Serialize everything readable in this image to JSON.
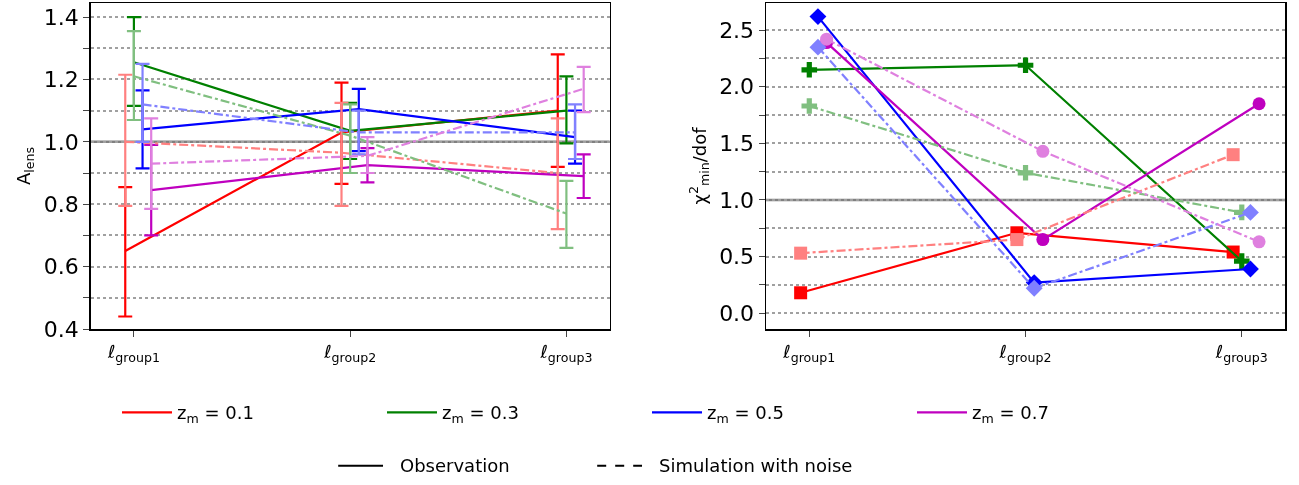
{
  "chart_data": [
    {
      "type": "line",
      "ylabel": "A$_{lens}$",
      "categories": [
        "ℓ$_{group1}$",
        "ℓ$_{group2}$",
        "ℓ$_{group3}$"
      ],
      "ylim": [
        0.4,
        1.445
      ],
      "yticks": [
        {
          "value": 0.4,
          "label": "0.4"
        },
        {
          "value": 0.5,
          "label": null
        },
        {
          "value": 0.6,
          "label": "0.6"
        },
        {
          "value": 0.7,
          "label": null
        },
        {
          "value": 0.8,
          "label": "0.8"
        },
        {
          "value": 0.9,
          "label": null
        },
        {
          "value": 1.0,
          "label": "1.0"
        },
        {
          "value": 1.1,
          "label": null
        },
        {
          "value": 1.2,
          "label": "1.2"
        },
        {
          "value": 1.3,
          "label": null
        },
        {
          "value": 1.4,
          "label": "1.4"
        }
      ],
      "grid": "y",
      "legend": "bottom",
      "marker": "none",
      "ref_lines": [
        {
          "axis": "y",
          "value": 1,
          "color": "#808080"
        }
      ],
      "annotations": [
        "Observation",
        "Simulation with noise"
      ],
      "series": [
        {
          "name": "z$_{m}$ = 0.1",
          "color": "#ff0000",
          "line_style": "solid",
          "values": [
            0.65,
            1.03,
            1.1
          ],
          "errors": [
            [
              0.44,
              0.855
            ],
            [
              0.865,
              1.19
            ],
            [
              0.92,
              1.28
            ]
          ]
        },
        {
          "name": "z$_{m}$ = 0.3",
          "color": "#008000",
          "line_style": "solid",
          "values": [
            1.255,
            1.035,
            1.1
          ],
          "errors": [
            [
              1.115,
              1.4
            ],
            [
              0.945,
              1.125
            ],
            [
              0.995,
              1.21
            ]
          ]
        },
        {
          "name": "z$_{m}$ = 0.5",
          "color": "#0000ff",
          "line_style": "solid",
          "values": [
            1.04,
            1.105,
            1.015
          ],
          "errors": [
            [
              0.915,
              1.165
            ],
            [
              0.97,
              1.17
            ],
            [
              0.93,
              1.1
            ]
          ]
        },
        {
          "name": "z$_{m}$ = 0.7",
          "color": "#bf00bf",
          "line_style": "solid",
          "values": [
            0.845,
            0.925,
            0.89
          ],
          "errors": [
            [
              0.7,
              0.99
            ],
            [
              0.87,
              0.98
            ],
            [
              0.82,
              0.96
            ]
          ]
        },
        {
          "color": "#ff8080",
          "line_style": "dashed",
          "values": [
            1.0,
            0.965,
            0.9
          ],
          "errors": [
            [
              0.795,
              1.215
            ],
            [
              0.795,
              1.125
            ],
            [
              0.72,
              1.075
            ]
          ]
        },
        {
          "color": "#80bf80",
          "line_style": "dashed",
          "values": [
            1.21,
            1.02,
            0.77
          ],
          "errors": [
            [
              1.07,
              1.355
            ],
            [
              0.9,
              1.12
            ],
            [
              0.66,
              0.875
            ]
          ]
        },
        {
          "color": "#8080ff",
          "line_style": "dashed",
          "values": [
            1.12,
            1.03,
            1.03
          ],
          "errors": [
            [
              1.0,
              1.25
            ],
            [
              0.96,
              1.1
            ],
            [
              0.945,
              1.12
            ]
          ]
        },
        {
          "color": "#df80df",
          "line_style": "dashed",
          "values": [
            0.93,
            0.955,
            1.17
          ],
          "errors": [
            [
              0.785,
              1.075
            ],
            [
              0.9,
              1.015
            ],
            [
              1.095,
              1.24
            ]
          ]
        }
      ]
    },
    {
      "type": "line",
      "ylabel": "χ$^{2}$$_{min}$/dof",
      "categories": [
        "ℓ$_{group1}$",
        "ℓ$_{group2}$",
        "ℓ$_{group3}$"
      ],
      "ylim": [
        -0.14,
        2.74
      ],
      "yticks": [
        {
          "value": 0.0,
          "label": "0.0"
        },
        {
          "value": 0.25,
          "label": null
        },
        {
          "value": 0.5,
          "label": "0.5"
        },
        {
          "value": 0.75,
          "label": null
        },
        {
          "value": 1.0,
          "label": "1.0"
        },
        {
          "value": 1.25,
          "label": null
        },
        {
          "value": 1.5,
          "label": "1.5"
        },
        {
          "value": 1.75,
          "label": null
        },
        {
          "value": 2.0,
          "label": "2.0"
        },
        {
          "value": 2.25,
          "label": null
        },
        {
          "value": 2.5,
          "label": "2.5"
        }
      ],
      "grid": "y",
      "legend": "bottom",
      "ref_lines": [
        {
          "axis": "y",
          "value": 1,
          "color": "#808080"
        }
      ],
      "series": [
        {
          "name": "z$_{m}$ = 0.1",
          "color": "#ff0000",
          "line_style": "solid",
          "marker": "square",
          "values": [
            0.18,
            0.71,
            0.54
          ]
        },
        {
          "name": "z$_{m}$ = 0.3",
          "color": "#008000",
          "line_style": "solid",
          "marker": "cross",
          "values": [
            2.15,
            2.19,
            0.46
          ]
        },
        {
          "name": "z$_{m}$ = 0.5",
          "color": "#0000ff",
          "line_style": "solid",
          "marker": "diamond",
          "values": [
            2.62,
            0.27,
            0.39
          ]
        },
        {
          "name": "z$_{m}$ = 0.7",
          "color": "#bf00bf",
          "line_style": "solid",
          "marker": "circle",
          "values": [
            2.39,
            0.65,
            1.85
          ]
        },
        {
          "color": "#ff8080",
          "line_style": "dashed",
          "marker": "square",
          "values": [
            0.53,
            0.65,
            1.4
          ]
        },
        {
          "color": "#80bf80",
          "line_style": "dashed",
          "marker": "cross",
          "values": [
            1.83,
            1.24,
            0.89
          ]
        },
        {
          "color": "#8080ff",
          "line_style": "dashed",
          "marker": "diamond",
          "values": [
            2.35,
            0.22,
            0.89
          ]
        },
        {
          "color": "#df80df",
          "line_style": "dashed",
          "marker": "circle",
          "values": [
            2.42,
            1.43,
            0.63
          ]
        }
      ]
    }
  ]
}
